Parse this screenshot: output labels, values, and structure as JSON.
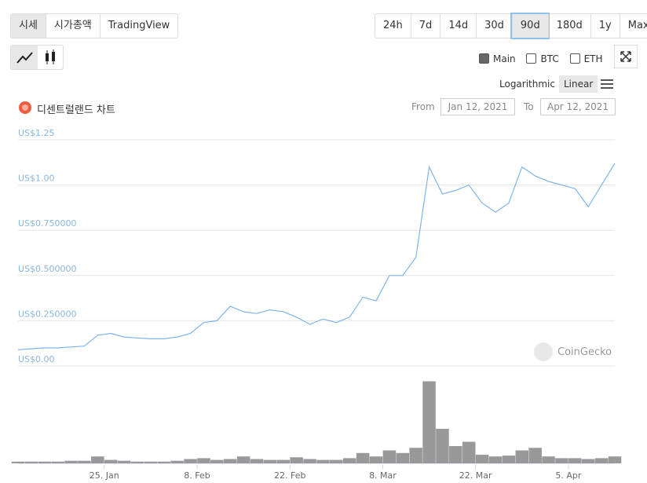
{
  "ui": {
    "views": [
      "시세",
      "시가총액",
      "TradingView"
    ],
    "ranges": [
      "24h",
      "7d",
      "14d",
      "30d",
      "90d",
      "180d",
      "1y",
      "Max"
    ],
    "checks": [
      "Main",
      "BTC",
      "ETH"
    ],
    "scales": [
      "Logarithmic",
      "Linear"
    ],
    "title": "디센트럴랜드 차트",
    "from_label": "From",
    "from": "Jan 12, 2021",
    "to_label": "To",
    "to": "Apr 12, 2021",
    "watermark": "CoinGecko"
  },
  "chart_data": [
    {
      "type": "line",
      "color": "#7cb5ec",
      "x": [
        "2021-01-12",
        "2021-01-14",
        "2021-01-16",
        "2021-01-18",
        "2021-01-20",
        "2021-01-22",
        "2021-01-24",
        "2021-01-26",
        "2021-01-28",
        "2021-01-30",
        "2021-02-01",
        "2021-02-03",
        "2021-02-05",
        "2021-02-07",
        "2021-02-09",
        "2021-02-11",
        "2021-02-13",
        "2021-02-15",
        "2021-02-17",
        "2021-02-19",
        "2021-02-21",
        "2021-02-23",
        "2021-02-25",
        "2021-02-27",
        "2021-03-01",
        "2021-03-03",
        "2021-03-05",
        "2021-03-07",
        "2021-03-09",
        "2021-03-11",
        "2021-03-13",
        "2021-03-15",
        "2021-03-17",
        "2021-03-19",
        "2021-03-21",
        "2021-03-23",
        "2021-03-25",
        "2021-03-27",
        "2021-03-29",
        "2021-03-31",
        "2021-04-02",
        "2021-04-04",
        "2021-04-06",
        "2021-04-08",
        "2021-04-10",
        "2021-04-12"
      ],
      "values": [
        0.09,
        0.095,
        0.1,
        0.1,
        0.105,
        0.11,
        0.17,
        0.18,
        0.16,
        0.155,
        0.15,
        0.15,
        0.16,
        0.18,
        0.24,
        0.25,
        0.33,
        0.3,
        0.29,
        0.31,
        0.3,
        0.27,
        0.23,
        0.26,
        0.24,
        0.27,
        0.38,
        0.36,
        0.5,
        0.5,
        0.6,
        1.1,
        0.95,
        0.97,
        1.0,
        0.9,
        0.85,
        0.9,
        1.1,
        1.05,
        1.02,
        1.0,
        0.98,
        0.88,
        1.0,
        1.12
      ],
      "xlim": [
        "2021-01-12",
        "2021-04-12"
      ],
      "xticks": [
        {
          "value": "2021-01-25",
          "label": "25. Jan"
        },
        {
          "value": "2021-02-08",
          "label": "8. Feb"
        },
        {
          "value": "2021-02-22",
          "label": "22. Feb"
        },
        {
          "value": "2021-03-08",
          "label": "8. Mar"
        },
        {
          "value": "2021-03-22",
          "label": "22. Mar"
        },
        {
          "value": "2021-04-05",
          "label": "5. Apr"
        }
      ],
      "ylim": [
        0,
        1.25
      ],
      "yticks": [
        {
          "value": 0,
          "label": "US$0.00"
        },
        {
          "value": 0.25,
          "label": "US$0.250000"
        },
        {
          "value": 0.5,
          "label": "US$0.500000"
        },
        {
          "value": 0.75,
          "label": "US$0.750000"
        },
        {
          "value": 1,
          "label": "US$1.00"
        },
        {
          "value": 1.25,
          "label": "US$1.25"
        }
      ],
      "grid": true
    },
    {
      "type": "bar",
      "color": "#999999",
      "x": [
        "2021-01-12",
        "2021-01-14",
        "2021-01-16",
        "2021-01-18",
        "2021-01-20",
        "2021-01-22",
        "2021-01-24",
        "2021-01-26",
        "2021-01-28",
        "2021-01-30",
        "2021-02-01",
        "2021-02-03",
        "2021-02-05",
        "2021-02-07",
        "2021-02-09",
        "2021-02-11",
        "2021-02-13",
        "2021-02-15",
        "2021-02-17",
        "2021-02-19",
        "2021-02-21",
        "2021-02-23",
        "2021-02-25",
        "2021-02-27",
        "2021-03-01",
        "2021-03-03",
        "2021-03-05",
        "2021-03-07",
        "2021-03-09",
        "2021-03-11",
        "2021-03-13",
        "2021-03-15",
        "2021-03-17",
        "2021-03-19",
        "2021-03-21",
        "2021-03-23",
        "2021-03-25",
        "2021-03-27",
        "2021-03-29",
        "2021-03-31",
        "2021-04-02",
        "2021-04-04",
        "2021-04-06",
        "2021-04-08",
        "2021-04-10",
        "2021-04-12"
      ],
      "values": [
        2,
        2,
        2,
        2,
        3,
        3,
        8,
        4,
        3,
        2,
        2,
        2,
        3,
        5,
        6,
        4,
        5,
        8,
        5,
        4,
        4,
        7,
        5,
        4,
        4,
        6,
        12,
        8,
        15,
        12,
        18,
        95,
        40,
        20,
        25,
        10,
        8,
        9,
        15,
        18,
        8,
        6,
        6,
        5,
        6,
        8
      ],
      "xlim": [
        "2021-01-12",
        "2021-04-12"
      ],
      "ylim": [
        0,
        100
      ]
    }
  ]
}
